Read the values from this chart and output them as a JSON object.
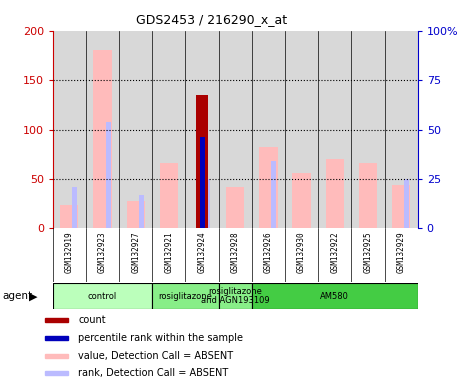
{
  "title": "GDS2453 / 216290_x_at",
  "samples": [
    "GSM132919",
    "GSM132923",
    "GSM132927",
    "GSM132921",
    "GSM132924",
    "GSM132928",
    "GSM132926",
    "GSM132930",
    "GSM132922",
    "GSM132925",
    "GSM132929"
  ],
  "count_values": [
    0,
    0,
    0,
    0,
    135,
    0,
    0,
    0,
    0,
    0,
    0
  ],
  "rank_values": [
    0,
    0,
    0,
    0,
    93,
    0,
    0,
    0,
    0,
    0,
    0
  ],
  "value_absent": [
    24,
    180,
    28,
    66,
    0,
    42,
    82,
    56,
    70,
    66,
    44
  ],
  "rank_absent": [
    42,
    108,
    34,
    0,
    50,
    0,
    68,
    0,
    0,
    0,
    50
  ],
  "agents": [
    {
      "label": "control",
      "start": 0,
      "end": 3,
      "color": "#bbffbb"
    },
    {
      "label": "rosiglitazone",
      "start": 3,
      "end": 5,
      "color": "#88ee88"
    },
    {
      "label": "rosiglitazone\nand AGN193109",
      "start": 5,
      "end": 6,
      "color": "#88ee88"
    },
    {
      "label": "AM580",
      "start": 6,
      "end": 11,
      "color": "#44cc44"
    }
  ],
  "ylim_left": [
    0,
    200
  ],
  "ylim_right": [
    0,
    100
  ],
  "yticks_left": [
    0,
    50,
    100,
    150,
    200
  ],
  "yticks_right": [
    0,
    25,
    50,
    75,
    100
  ],
  "ytick_labels_left": [
    "0",
    "50",
    "100",
    "150",
    "200"
  ],
  "ytick_labels_right": [
    "0",
    "25",
    "50",
    "75",
    "100%"
  ],
  "color_count": "#aa0000",
  "color_rank": "#0000bb",
  "color_value_absent": "#ffbbbb",
  "color_rank_absent": "#bbbbff",
  "color_axis_left": "#cc0000",
  "color_axis_right": "#0000cc",
  "wide_bar_width": 0.55,
  "narrow_bar_width": 0.15,
  "col_bg_color": "#d8d8d8"
}
